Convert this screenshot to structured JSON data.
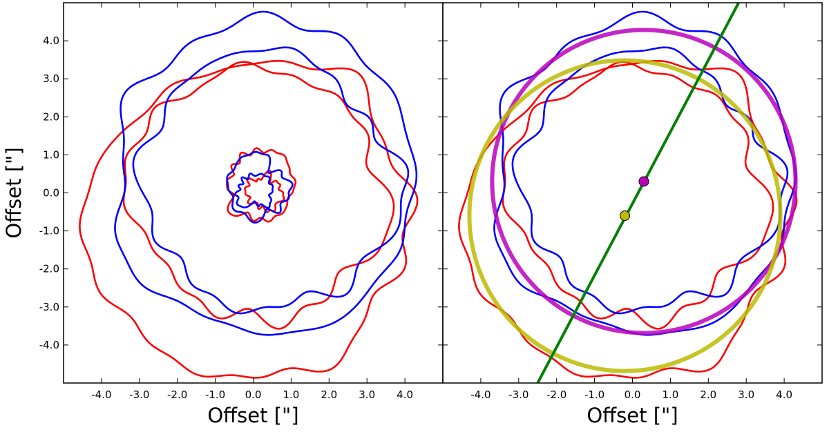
{
  "chart_data": {
    "type": "contour",
    "xlim": [
      -5,
      5
    ],
    "ylim": [
      -5,
      5
    ],
    "xticks": [
      -4,
      -3,
      -2,
      -1,
      0,
      1,
      2,
      3,
      4
    ],
    "yticks": [
      -4,
      -3,
      -2,
      -1,
      0,
      1,
      2,
      3,
      4
    ],
    "tick_labels": [
      "-4.0",
      "-3.0",
      "-2.0",
      "-1.0",
      "0.0",
      "1.0",
      "2.0",
      "3.0",
      "4.0"
    ],
    "panels": [
      {
        "name": "left",
        "xlabel": "Offset [\"]",
        "ylabel": "Offset [\"]",
        "contours": [
          {
            "name": "red-outer-ring",
            "color": "#ff0000",
            "center": [
              -0.1,
              -0.7
            ],
            "r": 4.2,
            "jitter": 0.14,
            "seed": 3
          },
          {
            "name": "red-inner-ring",
            "color": "#ff0000",
            "center": [
              0.1,
              0.0
            ],
            "r": 3.3,
            "jitter": 0.12,
            "seed": 7
          },
          {
            "name": "blue-outer-ring",
            "color": "#0000ff",
            "center": [
              0.3,
              0.4
            ],
            "r": 4.05,
            "jitter": 0.12,
            "seed": 11
          },
          {
            "name": "blue-inner-ring",
            "color": "#0000ff",
            "center": [
              0.4,
              0.3
            ],
            "r": 3.35,
            "jitter": 0.13,
            "seed": 19
          },
          {
            "name": "red-core-outer",
            "color": "#ff0000",
            "center": [
              0.2,
              0.2
            ],
            "r": 0.9,
            "jitter": 0.06,
            "seed": 23
          },
          {
            "name": "red-core-inner",
            "color": "#ff0000",
            "center": [
              0.3,
              0.0
            ],
            "r": 0.45,
            "jitter": 0.05,
            "seed": 29
          },
          {
            "name": "blue-core-outer",
            "color": "#0000ff",
            "center": [
              0.1,
              0.15
            ],
            "r": 0.8,
            "jitter": 0.06,
            "seed": 31
          },
          {
            "name": "blue-core-inner",
            "color": "#0000ff",
            "center": [
              0.05,
              0.05
            ],
            "r": 0.45,
            "jitter": 0.05,
            "seed": 37
          }
        ]
      },
      {
        "name": "right",
        "xlabel": "Offset [\"]",
        "ylabel": "",
        "contours": [
          {
            "name": "red-outer-ring",
            "color": "#ff0000",
            "center": [
              -0.1,
              -0.7
            ],
            "r": 4.2,
            "jitter": 0.14,
            "seed": 3
          },
          {
            "name": "red-inner-ring",
            "color": "#ff0000",
            "center": [
              0.1,
              0.0
            ],
            "r": 3.3,
            "jitter": 0.12,
            "seed": 7
          },
          {
            "name": "blue-outer-ring",
            "color": "#0000ff",
            "center": [
              0.3,
              0.4
            ],
            "r": 4.05,
            "jitter": 0.12,
            "seed": 11
          },
          {
            "name": "blue-inner-ring",
            "color": "#0000ff",
            "center": [
              0.4,
              0.3
            ],
            "r": 3.35,
            "jitter": 0.13,
            "seed": 19
          }
        ],
        "fit_circles": [
          {
            "name": "magenta-fit-circle",
            "color": "#bb00bb",
            "center": [
              0.3,
              0.3
            ],
            "r": 4.0
          },
          {
            "name": "yellow-fit-circle",
            "color": "#bbbb00",
            "center": [
              -0.2,
              -0.6
            ],
            "r": 4.1
          }
        ],
        "centers": [
          {
            "name": "magenta-center-marker",
            "color": "#bb00bb",
            "x": 0.3,
            "y": 0.3
          },
          {
            "name": "yellow-center-marker",
            "color": "#bbbb00",
            "x": -0.2,
            "y": -0.6
          }
        ],
        "line": {
          "name": "green-axis-line",
          "color": "#008000",
          "x1": -2.5,
          "y1": -5.0,
          "x2": 2.8,
          "y2": 5.0
        }
      }
    ]
  }
}
